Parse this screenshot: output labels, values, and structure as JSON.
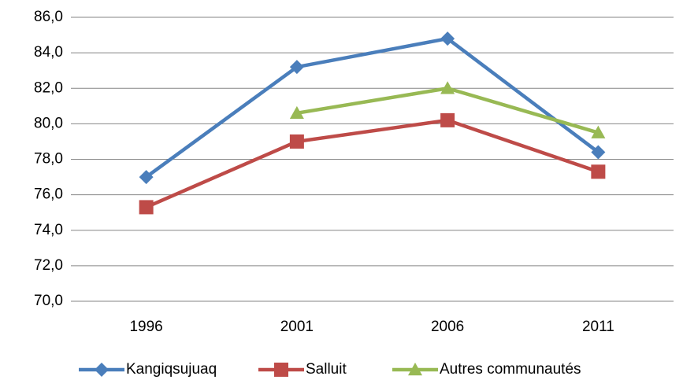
{
  "chart_data": {
    "type": "line",
    "categories": [
      "1996",
      "2001",
      "2006",
      "2011"
    ],
    "series": [
      {
        "name": "Kangiqsujuaq",
        "color": "#4a7ebb",
        "marker": "diamond",
        "values": [
          77.0,
          83.2,
          84.8,
          78.4
        ]
      },
      {
        "name": "Salluit",
        "color": "#be4b48",
        "marker": "square",
        "values": [
          75.3,
          79.0,
          80.2,
          77.3
        ]
      },
      {
        "name": "Autres communautés",
        "color": "#98b954",
        "marker": "triangle",
        "values": [
          null,
          80.6,
          82.0,
          79.5
        ]
      }
    ],
    "ylim": [
      70,
      86
    ],
    "yticks": [
      {
        "value": 70,
        "label": "70,0"
      },
      {
        "value": 72,
        "label": "72,0"
      },
      {
        "value": 74,
        "label": "74,0"
      },
      {
        "value": 76,
        "label": "76,0"
      },
      {
        "value": 78,
        "label": "78,0"
      },
      {
        "value": 80,
        "label": "80,0"
      },
      {
        "value": 82,
        "label": "82,0"
      },
      {
        "value": 84,
        "label": "84,0"
      },
      {
        "value": 86,
        "label": "86,0"
      }
    ],
    "grid": true,
    "legend": "bottom"
  }
}
